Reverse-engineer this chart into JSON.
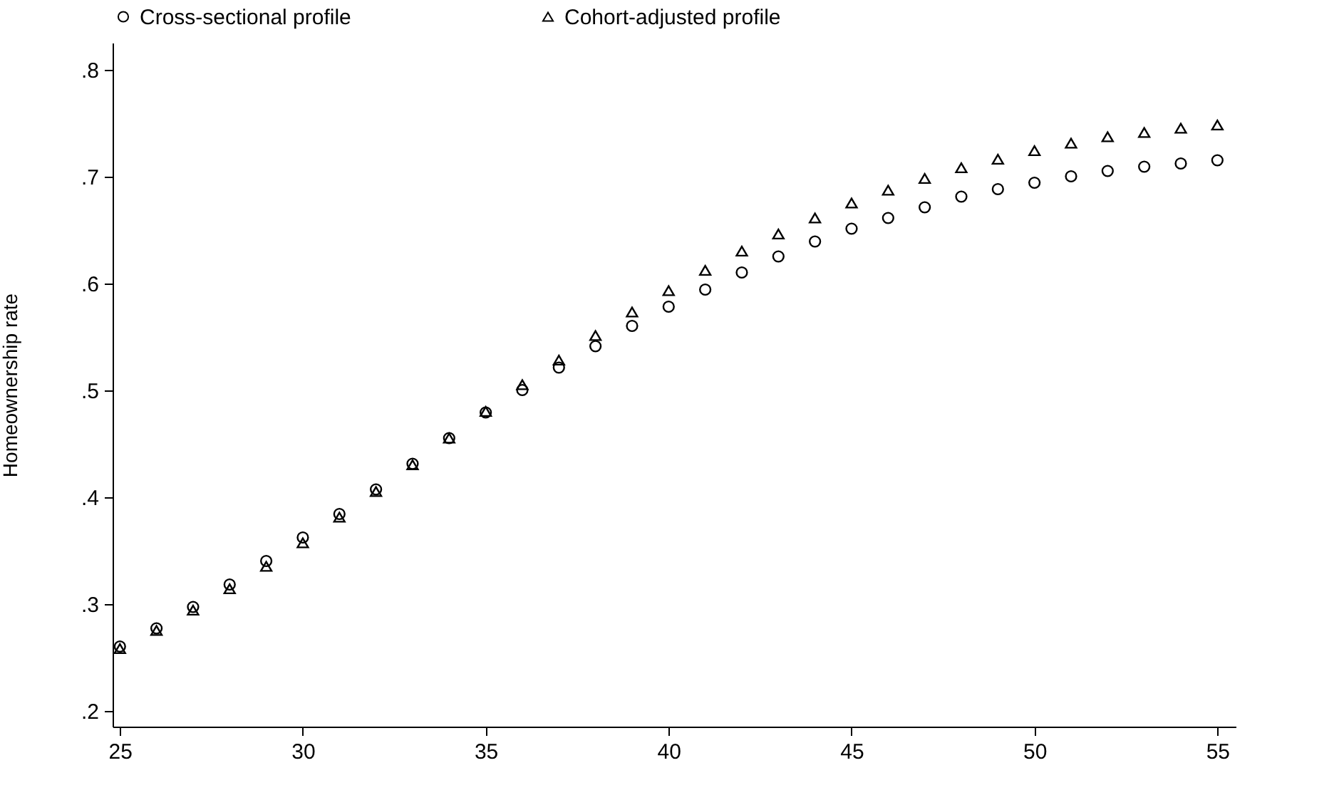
{
  "chart_data": {
    "type": "scatter",
    "ylabel": "Homeownership rate",
    "legend": "top",
    "x": [
      25,
      26,
      27,
      28,
      29,
      30,
      31,
      32,
      33,
      34,
      35,
      36,
      37,
      38,
      39,
      40,
      41,
      42,
      43,
      44,
      45,
      46,
      47,
      48,
      49,
      50,
      51,
      52,
      53,
      54,
      55
    ],
    "series": [
      {
        "name": "Cross-sectional profile",
        "color": "#000000",
        "marker": "circle",
        "values": [
          0.26,
          0.277,
          0.297,
          0.318,
          0.34,
          0.362,
          0.384,
          0.407,
          0.431,
          0.455,
          0.479,
          0.5,
          0.521,
          0.541,
          0.56,
          0.578,
          0.594,
          0.61,
          0.625,
          0.639,
          0.651,
          0.661,
          0.671,
          0.681,
          0.688,
          0.694,
          0.7,
          0.705,
          0.709,
          0.712,
          0.715
        ]
      },
      {
        "name": "Cohort-adjusted profile",
        "color": "#000000",
        "marker": "triangle",
        "values": [
          0.258,
          0.275,
          0.294,
          0.314,
          0.335,
          0.357,
          0.381,
          0.405,
          0.43,
          0.455,
          0.48,
          0.505,
          0.528,
          0.551,
          0.573,
          0.593,
          0.612,
          0.63,
          0.646,
          0.661,
          0.675,
          0.687,
          0.698,
          0.708,
          0.716,
          0.724,
          0.731,
          0.737,
          0.741,
          0.745,
          0.748
        ]
      }
    ],
    "xlim": [
      24.8,
      55.5
    ],
    "xticks": [
      25,
      30,
      35,
      40,
      45,
      50,
      55
    ],
    "ylim": [
      0.185,
      0.825
    ],
    "yticks": [
      {
        "value": 0.2,
        "label": ".2"
      },
      {
        "value": 0.3,
        "label": ".3"
      },
      {
        "value": 0.4,
        "label": ".4"
      },
      {
        "value": 0.5,
        "label": ".5"
      },
      {
        "value": 0.6,
        "label": ".6"
      },
      {
        "value": 0.7,
        "label": ".7"
      },
      {
        "value": 0.8,
        "label": ".8"
      }
    ],
    "grid": false
  }
}
